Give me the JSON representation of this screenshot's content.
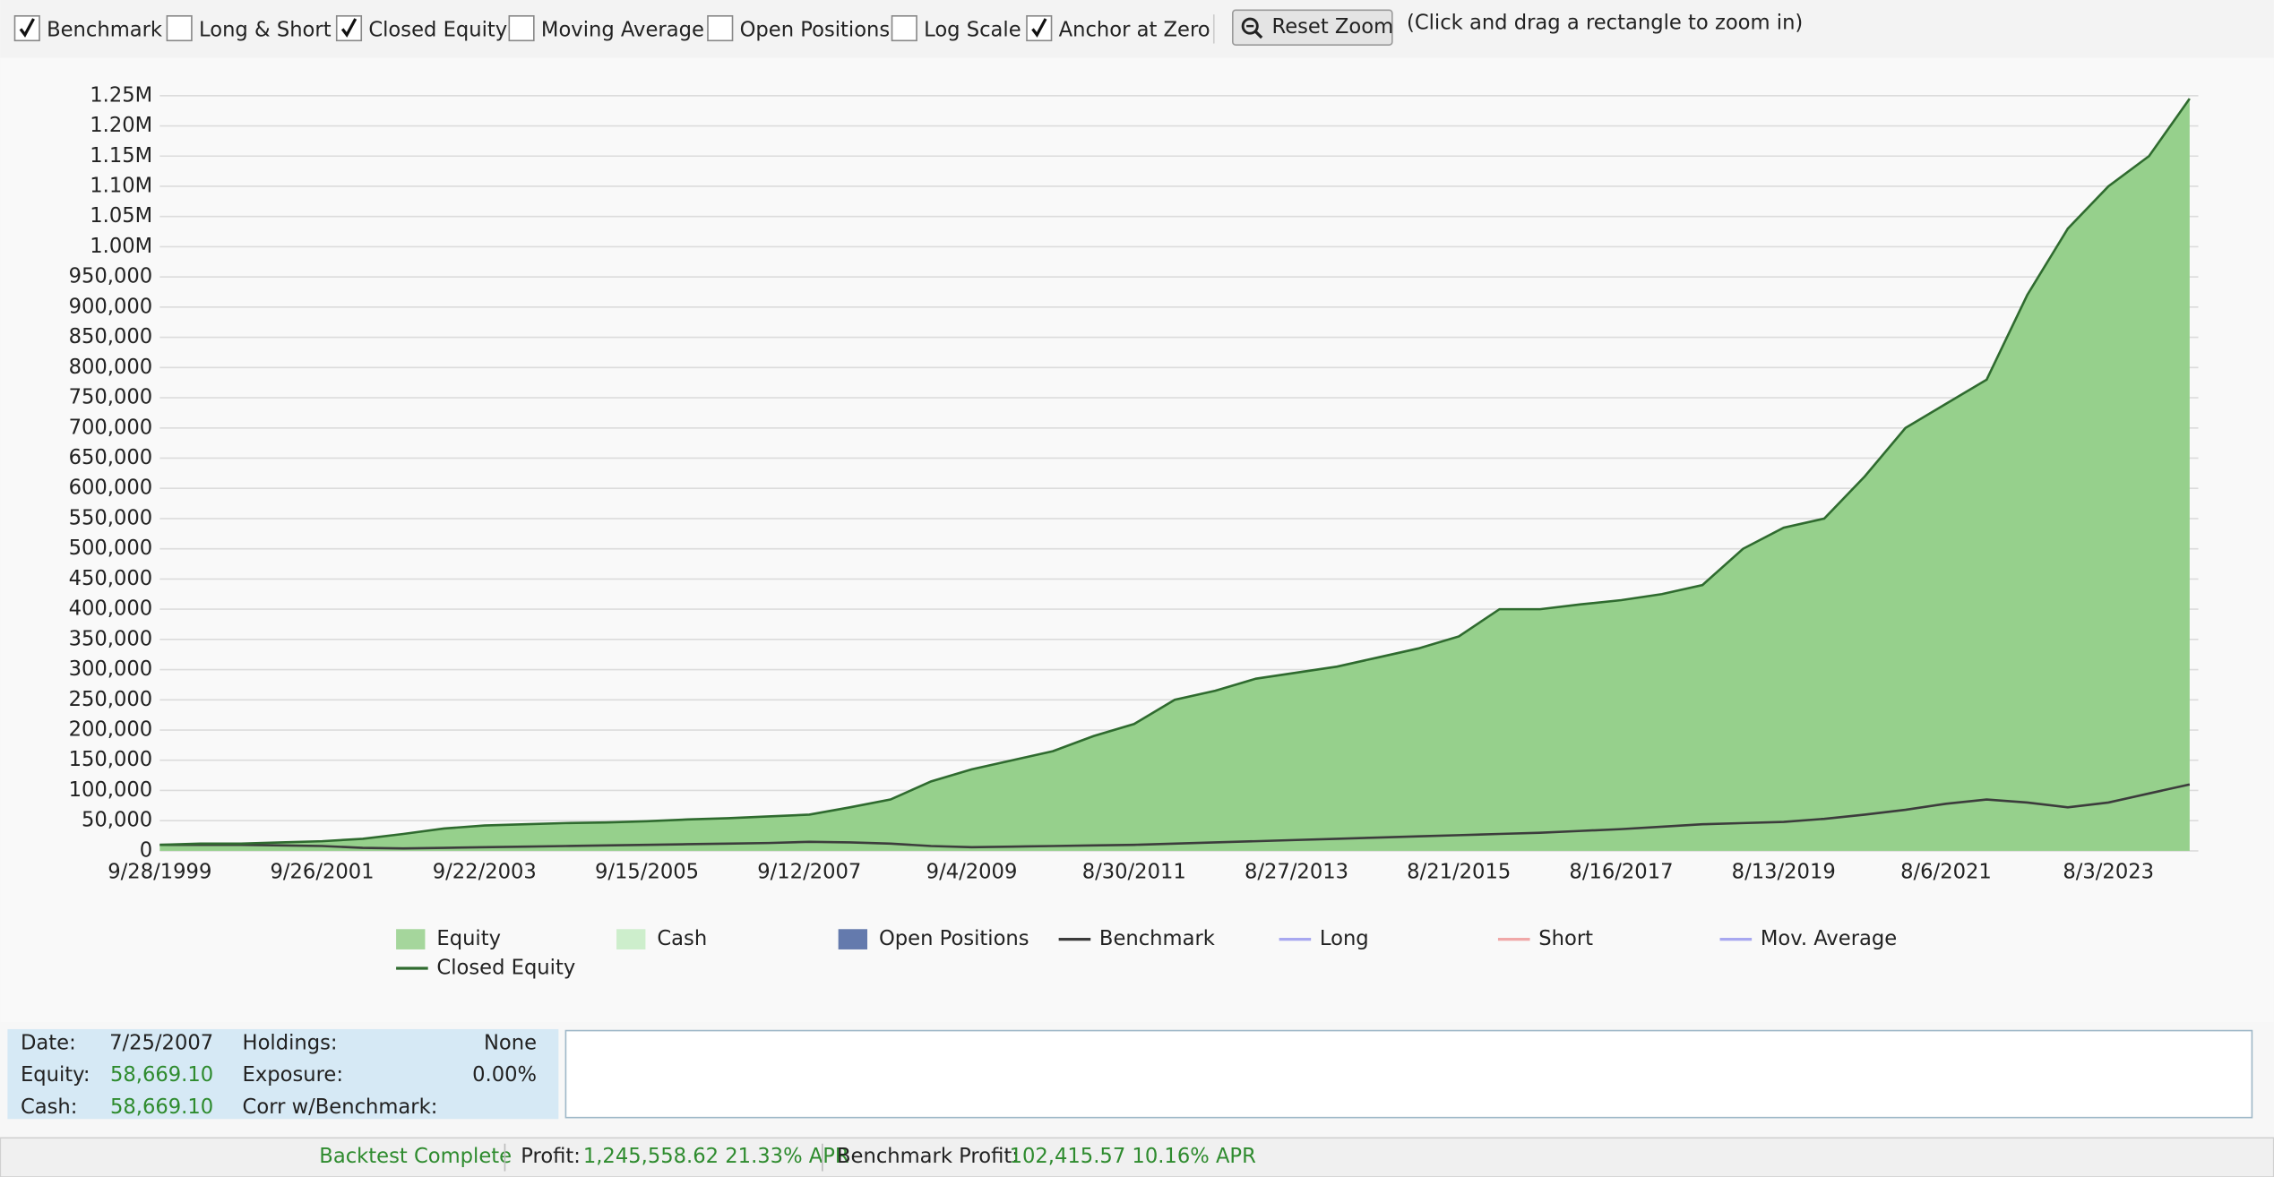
{
  "toolbar": {
    "options": [
      {
        "label": "Benchmark",
        "checked": true
      },
      {
        "label": "Long & Short",
        "checked": false
      },
      {
        "label": "Closed Equity",
        "checked": true
      },
      {
        "label": "Moving Average",
        "checked": false
      },
      {
        "label": "Open Positions",
        "checked": false
      },
      {
        "label": "Log Scale",
        "checked": false
      },
      {
        "label": "Anchor at Zero",
        "checked": true
      }
    ],
    "button": "Reset Zoom",
    "hint": "(Click and drag a rectangle to zoom in)"
  },
  "chart_data": {
    "type": "area",
    "x": [
      "9/28/1999",
      null,
      null,
      null,
      "9/26/2001",
      null,
      null,
      null,
      "9/22/2003",
      null,
      null,
      null,
      "9/15/2005",
      null,
      null,
      null,
      "9/12/2007",
      null,
      null,
      null,
      "9/4/2009",
      null,
      null,
      null,
      "8/30/2011",
      null,
      null,
      null,
      "8/27/2013",
      null,
      null,
      null,
      "8/21/2015",
      null,
      null,
      null,
      "8/16/2017",
      null,
      null,
      null,
      "8/13/2019",
      null,
      null,
      null,
      "8/6/2021",
      null,
      null,
      null,
      "8/3/2023",
      null,
      null
    ],
    "series": [
      {
        "name": "Equity",
        "color": "#96d08c",
        "style": "area",
        "values": [
          10000,
          12000,
          12000,
          14000,
          16000,
          20000,
          28000,
          37000,
          42000,
          44000,
          46000,
          47000,
          49000,
          52000,
          54000,
          57000,
          60000,
          72000,
          85000,
          115000,
          135000,
          150000,
          165000,
          190000,
          210000,
          250000,
          265000,
          285000,
          295000,
          305000,
          320000,
          335000,
          355000,
          400000,
          400000,
          408000,
          415000,
          425000,
          440000,
          500000,
          535000,
          550000,
          620000,
          700000,
          740000,
          780000,
          920000,
          1030000,
          1100000,
          1150000,
          1245000
        ]
      },
      {
        "name": "Cash",
        "color": "#c6ecc4",
        "style": "area"
      },
      {
        "name": "Open Positions",
        "color": "#4a64a0",
        "style": "area"
      },
      {
        "name": "Benchmark",
        "color": "#3c3c3c",
        "style": "line",
        "values": [
          10000,
          10000,
          10000,
          9000,
          8000,
          5000,
          4000,
          5000,
          6000,
          7000,
          8000,
          9000,
          10000,
          11000,
          12000,
          13000,
          15000,
          14000,
          12000,
          8000,
          6000,
          7000,
          8000,
          9000,
          10000,
          12000,
          14000,
          16000,
          18000,
          20000,
          22000,
          24000,
          26000,
          28000,
          30000,
          33000,
          36000,
          40000,
          44000,
          46000,
          48000,
          53000,
          60000,
          68000,
          78000,
          85000,
          80000,
          72000,
          80000,
          95000,
          110000
        ]
      },
      {
        "name": "Long",
        "color": "#a8a8f0",
        "style": "line"
      },
      {
        "name": "Short",
        "color": "#f0a8a8",
        "style": "line"
      },
      {
        "name": "Mov. Average",
        "color": "#a8a8f0",
        "style": "line"
      },
      {
        "name": "Closed Equity",
        "color": "#2f6b2f",
        "style": "line",
        "values": [
          10000,
          12000,
          12000,
          14000,
          16000,
          20000,
          28000,
          37000,
          42000,
          44000,
          46000,
          47000,
          49000,
          52000,
          54000,
          57000,
          60000,
          72000,
          85000,
          115000,
          135000,
          150000,
          165000,
          190000,
          210000,
          250000,
          265000,
          285000,
          295000,
          305000,
          320000,
          335000,
          355000,
          400000,
          400000,
          408000,
          415000,
          425000,
          440000,
          500000,
          535000,
          550000,
          620000,
          700000,
          740000,
          780000,
          920000,
          1030000,
          1100000,
          1150000,
          1245000
        ]
      }
    ],
    "ylim": [
      0,
      1250000
    ],
    "yticks": [
      0,
      {
        "value": 50000,
        "label": "50,000"
      },
      {
        "value": 100000,
        "label": "100,000"
      },
      {
        "value": 150000,
        "label": "150,000"
      },
      {
        "value": 200000,
        "label": "200,000"
      },
      {
        "value": 250000,
        "label": "250,000"
      },
      {
        "value": 300000,
        "label": "300,000"
      },
      {
        "value": 350000,
        "label": "350,000"
      },
      {
        "value": 400000,
        "label": "400,000"
      },
      {
        "value": 450000,
        "label": "450,000"
      },
      {
        "value": 500000,
        "label": "500,000"
      },
      {
        "value": 550000,
        "label": "550,000"
      },
      {
        "value": 600000,
        "label": "600,000"
      },
      {
        "value": 650000,
        "label": "650,000"
      },
      {
        "value": 700000,
        "label": "700,000"
      },
      {
        "value": 750000,
        "label": "750,000"
      },
      {
        "value": 800000,
        "label": "800,000"
      },
      {
        "value": 850000,
        "label": "850,000"
      },
      {
        "value": 900000,
        "label": "900,000"
      },
      {
        "value": 950000,
        "label": "950,000"
      },
      {
        "value": 1000000,
        "label": "1.00M"
      },
      {
        "value": 1050000,
        "label": "1.05M"
      },
      {
        "value": 1100000,
        "label": "1.10M"
      },
      {
        "value": 1150000,
        "label": "1.15M"
      },
      {
        "value": 1200000,
        "label": "1.20M"
      },
      {
        "value": 1250000,
        "label": "1.25M"
      }
    ],
    "grid": true
  },
  "info": {
    "left": [
      {
        "label": "Date:",
        "value": "7/25/2007"
      },
      {
        "label": "Equity:",
        "value": "58,669.10"
      },
      {
        "label": "Cash:",
        "value": "58,669.10"
      }
    ],
    "right": [
      {
        "label": "Holdings:",
        "value": "None"
      },
      {
        "label": "Exposure:",
        "value": "0.00%"
      },
      {
        "label": "Corr w/Benchmark:"
      }
    ]
  },
  "status": {
    "state": "Backtest Complete",
    "profit_label": "Profit:",
    "profit": "1,245,558.62 21.33% APR",
    "benchmark_label": "Benchmark Profit:",
    "benchmark": "102,415.57 10.16% APR"
  }
}
